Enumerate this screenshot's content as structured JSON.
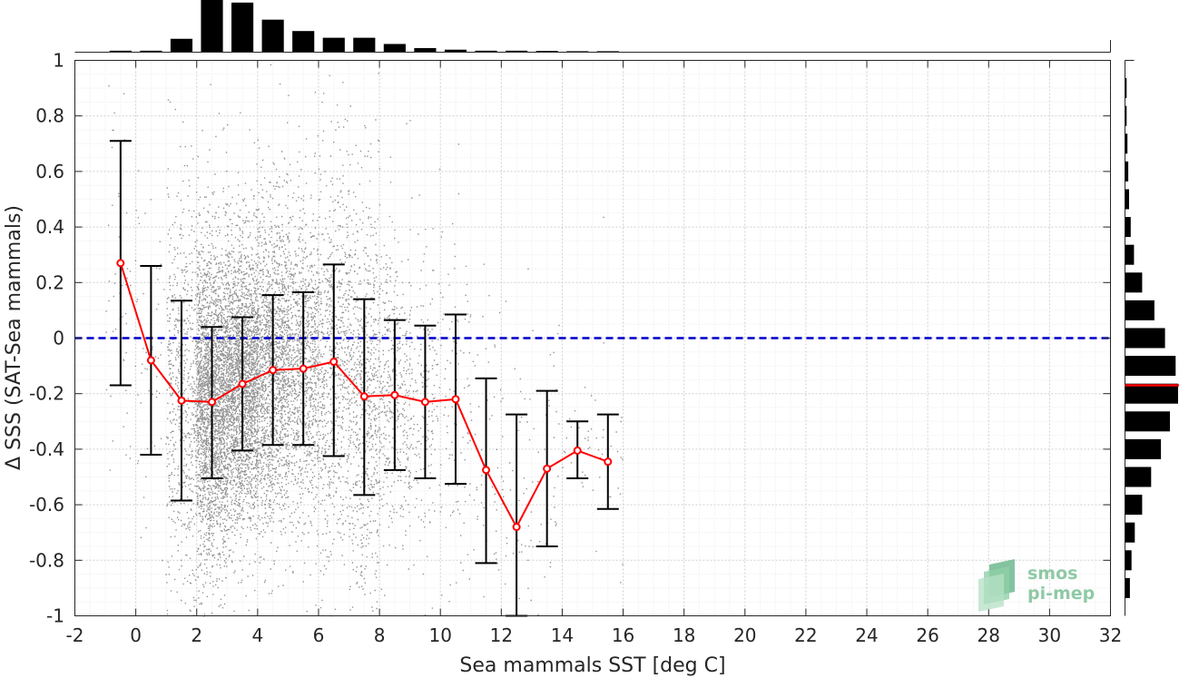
{
  "chart_data": {
    "type": "scatter",
    "xlabel": "Sea mammals SST [deg C]",
    "ylabel": "Δ SSS (SAT-Sea mammals)",
    "xlim": [
      -2,
      32
    ],
    "ylim": [
      -1,
      1
    ],
    "xticks": [
      "-2",
      "0",
      "2",
      "4",
      "6",
      "8",
      "10",
      "12",
      "14",
      "16",
      "18",
      "20",
      "22",
      "24",
      "26",
      "28",
      "30",
      "32"
    ],
    "yticks": [
      "-1",
      "-0.8",
      "-0.6",
      "-0.4",
      "-0.2",
      "0",
      "0.2",
      "0.4",
      "0.6",
      "0.8",
      "1"
    ],
    "grid": true,
    "reference_line": {
      "y": 0,
      "style": "dashed",
      "color": "#0000cc"
    },
    "binned_mean": {
      "color": "#ff0000",
      "x": [
        -0.5,
        0.5,
        1.5,
        2.5,
        3.5,
        4.5,
        5.5,
        6.5,
        7.5,
        8.5,
        9.5,
        10.5,
        11.5,
        12.5,
        13.5,
        14.5,
        15.5
      ],
      "y": [
        0.27,
        -0.08,
        -0.225,
        -0.23,
        -0.165,
        -0.115,
        -0.11,
        -0.085,
        -0.21,
        -0.205,
        -0.23,
        -0.22,
        -0.475,
        -0.68,
        -0.47,
        -0.405,
        -0.445
      ],
      "lower": [
        -0.17,
        -0.42,
        -0.585,
        -0.505,
        -0.405,
        -0.385,
        -0.385,
        -0.425,
        -0.565,
        -0.475,
        -0.505,
        -0.525,
        -0.81,
        -1.0,
        -0.75,
        -0.505,
        -0.615
      ],
      "upper": [
        0.71,
        0.26,
        0.135,
        0.04,
        0.075,
        0.155,
        0.165,
        0.265,
        0.14,
        0.065,
        0.045,
        0.085,
        -0.145,
        -0.275,
        -0.19,
        -0.3,
        -0.275
      ]
    },
    "scatter_color": "#808080",
    "top_histogram": {
      "bin_centers": [
        -0.5,
        0.5,
        1.5,
        2.5,
        3.5,
        4.5,
        5.5,
        6.5,
        7.5,
        8.5,
        9.5,
        10.5,
        11.5,
        12.5,
        13.5,
        14.5,
        15.5
      ],
      "relative_counts": [
        0.02,
        0.02,
        0.25,
        1.0,
        0.95,
        0.62,
        0.4,
        0.27,
        0.27,
        0.15,
        0.07,
        0.04,
        0.02,
        0.02,
        0.015,
        0.01,
        0.01
      ]
    },
    "right_histogram": {
      "bin_centers": [
        0.9,
        0.8,
        0.7,
        0.6,
        0.5,
        0.4,
        0.3,
        0.2,
        0.1,
        0.0,
        -0.1,
        -0.2,
        -0.3,
        -0.4,
        -0.5,
        -0.6,
        -0.7,
        -0.8,
        -0.9
      ],
      "relative_counts": [
        0.02,
        0.02,
        0.03,
        0.04,
        0.05,
        0.07,
        0.11,
        0.21,
        0.36,
        0.49,
        0.62,
        0.65,
        0.55,
        0.44,
        0.32,
        0.21,
        0.12,
        0.08,
        0.06
      ],
      "median_line_y": -0.17,
      "median_line_color": "#ff0000"
    }
  },
  "logo": {
    "line1": "smos",
    "line2": "pi-mep"
  }
}
